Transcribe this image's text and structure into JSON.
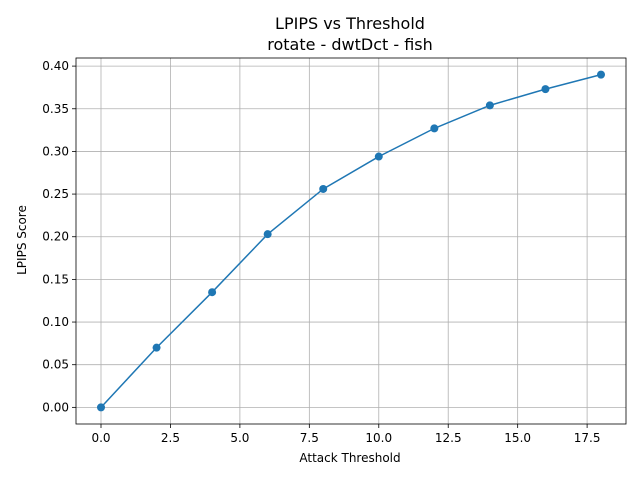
{
  "chart_data": {
    "type": "line",
    "title": "LPIPS vs Threshold",
    "subtitle": "rotate - dwtDct - fish",
    "xlabel": "Attack Threshold",
    "ylabel": "LPIPS Score",
    "xlim": [
      -0.9,
      18.9
    ],
    "ylim": [
      -0.0195,
      0.4095
    ],
    "xticks": [
      0.0,
      2.5,
      5.0,
      7.5,
      10.0,
      12.5,
      15.0,
      17.5
    ],
    "xtick_labels": [
      "0.0",
      "2.5",
      "5.0",
      "7.5",
      "10.0",
      "12.5",
      "15.0",
      "17.5"
    ],
    "yticks": [
      0.0,
      0.05,
      0.1,
      0.15,
      0.2,
      0.25,
      0.3,
      0.35,
      0.4
    ],
    "ytick_labels": [
      "0.00",
      "0.05",
      "0.10",
      "0.15",
      "0.20",
      "0.25",
      "0.30",
      "0.35",
      "0.40"
    ],
    "grid": true,
    "series": [
      {
        "color": "#1f77b4",
        "marker": "circle",
        "x": [
          0,
          2,
          4,
          6,
          8,
          10,
          12,
          14,
          16,
          18
        ],
        "y": [
          0.0,
          0.07,
          0.135,
          0.203,
          0.256,
          0.294,
          0.327,
          0.354,
          0.373,
          0.39
        ]
      }
    ]
  }
}
